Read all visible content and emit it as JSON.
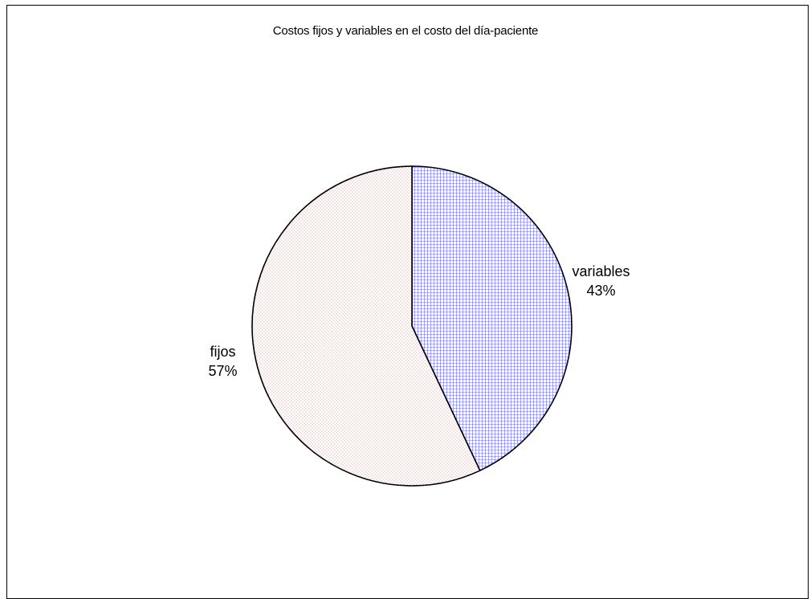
{
  "chart_data": {
    "type": "pie",
    "title": "Costos fijos y variables en el costo del día-paciente",
    "slices": [
      {
        "label": "variables",
        "value": 43,
        "value_label": "43%",
        "pattern": "grid",
        "color": "#6a6af0"
      },
      {
        "label": "fijos",
        "value": 57,
        "value_label": "57%",
        "pattern": "dots",
        "color": "#c87878"
      }
    ],
    "start_angle_deg": 0,
    "direction": "clockwise",
    "legend": "none"
  }
}
